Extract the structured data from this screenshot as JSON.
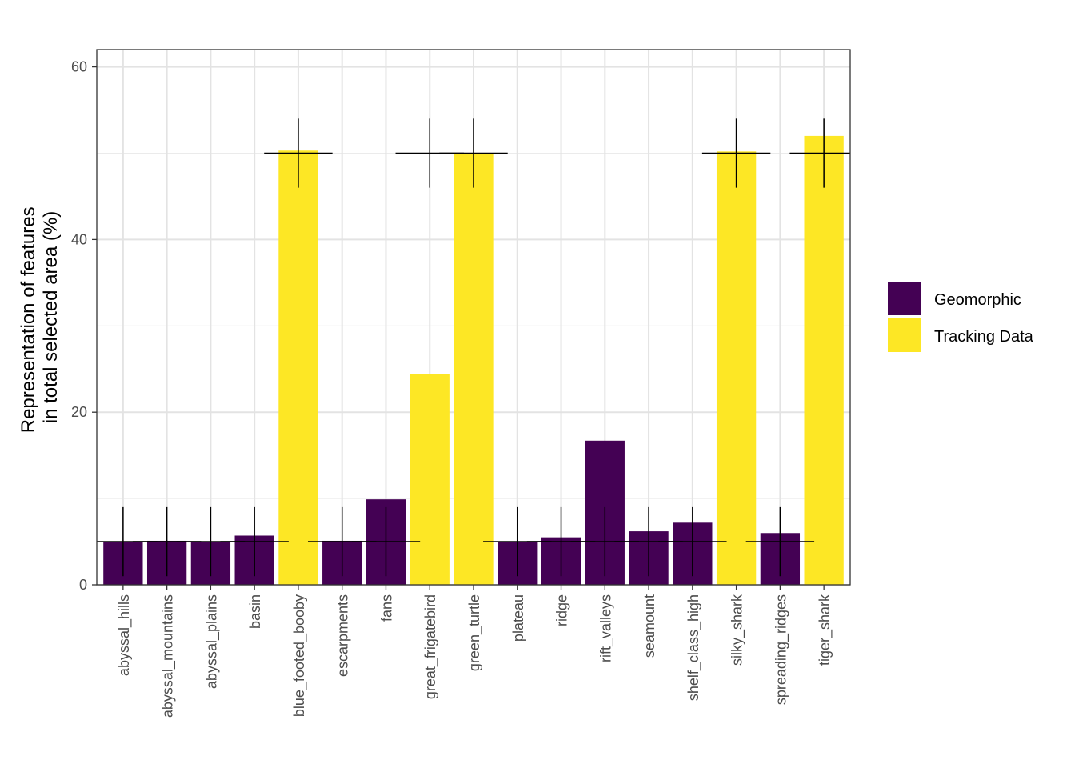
{
  "chart_data": {
    "type": "bar",
    "title": "",
    "xlabel": "",
    "ylabel_lines": [
      "Representation of features",
      "in total selected area (%)"
    ],
    "ylim": [
      0,
      62
    ],
    "yticks": [
      0,
      20,
      40,
      60
    ],
    "grid": true,
    "legend_position": "right",
    "colors": {
      "Geomorphic": "#440154",
      "Tracking Data": "#FDE725"
    },
    "legend": [
      "Geomorphic",
      "Tracking Data"
    ],
    "categories": [
      "abyssal_hills",
      "abyssal_mountains",
      "abyssal_plains",
      "basin",
      "blue_footed_booby",
      "escarpments",
      "fans",
      "great_frigatebird",
      "green_turtle",
      "plateau",
      "ridge",
      "rift_valleys",
      "seamount",
      "shelf_class_high",
      "silky_shark",
      "spreading_ridges",
      "tiger_shark"
    ],
    "groups": [
      "Geomorphic",
      "Geomorphic",
      "Geomorphic",
      "Geomorphic",
      "Tracking Data",
      "Geomorphic",
      "Geomorphic",
      "Tracking Data",
      "Tracking Data",
      "Geomorphic",
      "Geomorphic",
      "Geomorphic",
      "Geomorphic",
      "Geomorphic",
      "Tracking Data",
      "Geomorphic",
      "Tracking Data"
    ],
    "values": [
      5.0,
      5.1,
      5.0,
      5.7,
      50.3,
      5.1,
      9.9,
      24.4,
      50.0,
      5.0,
      5.5,
      16.7,
      6.2,
      7.2,
      50.2,
      6.0,
      52.0
    ],
    "targets": [
      5,
      5,
      5,
      5,
      50,
      5,
      5,
      50,
      50,
      5,
      5,
      5,
      5,
      5,
      50,
      5,
      50
    ]
  }
}
